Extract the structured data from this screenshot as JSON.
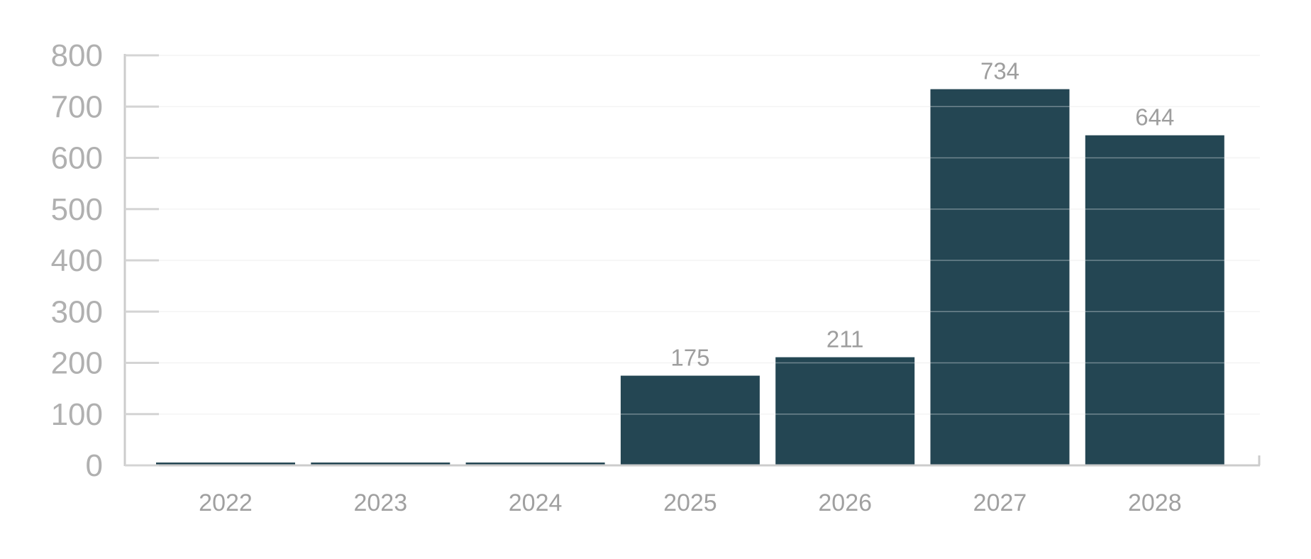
{
  "chart_data": {
    "type": "bar",
    "title": "",
    "xlabel": "",
    "ylabel": "",
    "categories": [
      "2022",
      "2023",
      "2024",
      "2025",
      "2026",
      "2027",
      "2028"
    ],
    "series": [
      {
        "values": [
          0,
          0,
          0,
          175,
          211,
          734,
          644
        ],
        "color": "#244653"
      }
    ],
    "data_labels": [
      "",
      "",
      "",
      "175",
      "211",
      "734",
      "644"
    ],
    "ylim": [
      0,
      800
    ],
    "yticks": [
      0,
      100,
      200,
      300,
      400,
      500,
      600,
      700,
      800
    ],
    "ytick_labels": [
      "0",
      "100",
      "200",
      "300",
      "400",
      "500",
      "600",
      "700",
      "800"
    ],
    "grid": true,
    "legend": "none"
  }
}
